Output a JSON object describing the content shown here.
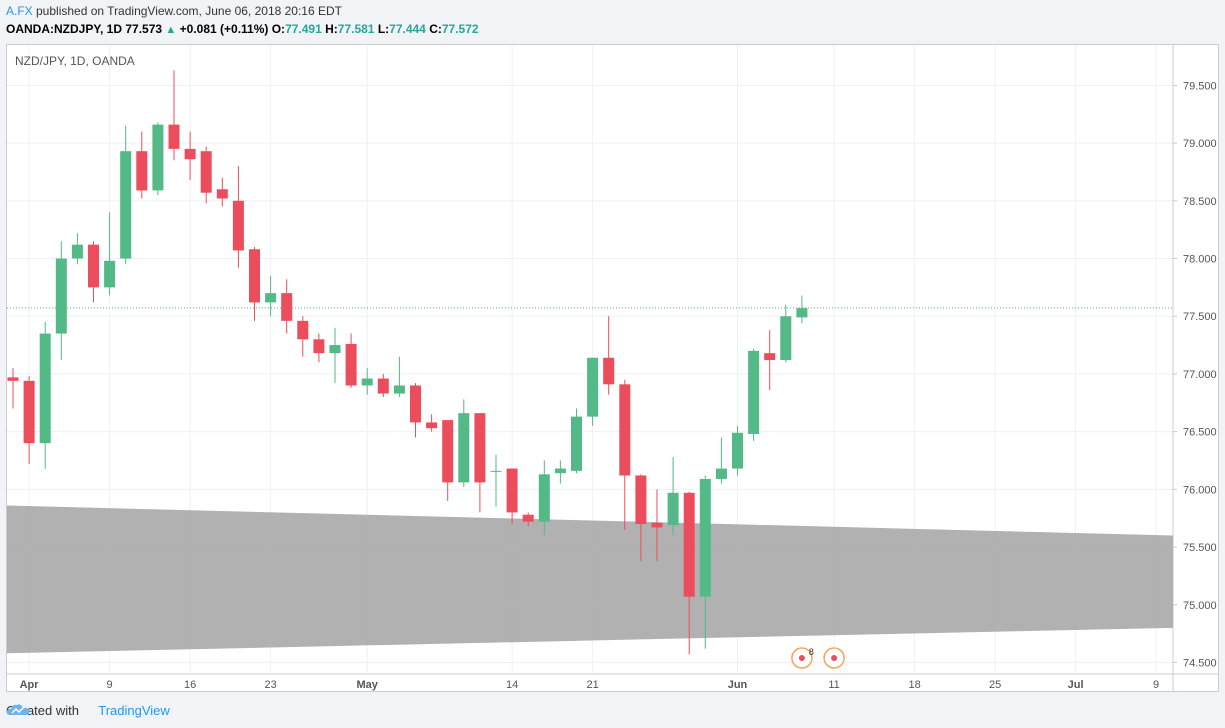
{
  "header": {
    "author": "A.FX",
    "published_text": " published on TradingView.com, June 06, 2018 20:16 EDT",
    "symbol": "OANDA:NZDJPY, 1D",
    "last": "77.573",
    "change": "+0.081 (+0.11%)",
    "o_label": "O:",
    "o_value": "77.491",
    "h_label": "H:",
    "h_value": "77.581",
    "l_label": "L:",
    "l_value": "77.444",
    "c_label": "C:",
    "c_value": "77.572"
  },
  "footer": {
    "created_with": "Created with",
    "brand": "TradingView"
  },
  "colors": {
    "up": "#53b987",
    "down": "#eb4d5c",
    "band": "#a9a9a9",
    "grid": "#eef0f3",
    "price_line": "#53b987"
  },
  "chart_data": {
    "type": "candlestick",
    "title": "NZD/JPY, 1D, OANDA",
    "ylim": [
      74.4,
      79.85
    ],
    "yticks": [
      "74.500",
      "75.000",
      "75.500",
      "76.000",
      "76.500",
      "77.000",
      "77.500",
      "78.000",
      "78.500",
      "79.000",
      "79.500"
    ],
    "current_price": 77.572,
    "xticks": [
      {
        "label": "Apr",
        "i": 1
      },
      {
        "label": "9",
        "i": 6
      },
      {
        "label": "16",
        "i": 11
      },
      {
        "label": "23",
        "i": 16
      },
      {
        "label": "May",
        "i": 22
      },
      {
        "label": "14",
        "i": 31
      },
      {
        "label": "21",
        "i": 36
      },
      {
        "label": "Jun",
        "i": 45
      },
      {
        "label": "11",
        "i": 51
      },
      {
        "label": "18",
        "i": 56
      },
      {
        "label": "25",
        "i": 61
      },
      {
        "label": "Jul",
        "i": 66
      },
      {
        "label": "9",
        "i": 71
      }
    ],
    "candles": [
      {
        "o": 76.97,
        "h": 77.05,
        "l": 76.7,
        "c": 76.94
      },
      {
        "o": 76.94,
        "h": 76.98,
        "l": 76.22,
        "c": 76.4
      },
      {
        "o": 76.4,
        "h": 77.45,
        "l": 76.18,
        "c": 77.35
      },
      {
        "o": 77.35,
        "h": 78.15,
        "l": 77.12,
        "c": 78.0
      },
      {
        "o": 78.0,
        "h": 78.22,
        "l": 77.95,
        "c": 78.12
      },
      {
        "o": 78.12,
        "h": 78.15,
        "l": 77.62,
        "c": 77.75
      },
      {
        "o": 77.75,
        "h": 78.4,
        "l": 77.68,
        "c": 77.98
      },
      {
        "o": 78.0,
        "h": 79.15,
        "l": 77.95,
        "c": 78.93
      },
      {
        "o": 78.93,
        "h": 79.1,
        "l": 78.52,
        "c": 78.59
      },
      {
        "o": 78.59,
        "h": 79.18,
        "l": 78.55,
        "c": 79.16
      },
      {
        "o": 79.16,
        "h": 79.63,
        "l": 78.85,
        "c": 78.95
      },
      {
        "o": 78.95,
        "h": 79.1,
        "l": 78.68,
        "c": 78.86
      },
      {
        "o": 78.93,
        "h": 78.97,
        "l": 78.48,
        "c": 78.57
      },
      {
        "o": 78.6,
        "h": 78.7,
        "l": 78.45,
        "c": 78.52
      },
      {
        "o": 78.5,
        "h": 78.8,
        "l": 77.92,
        "c": 78.07
      },
      {
        "o": 78.08,
        "h": 78.1,
        "l": 77.46,
        "c": 77.62
      },
      {
        "o": 77.62,
        "h": 77.85,
        "l": 77.5,
        "c": 77.7
      },
      {
        "o": 77.7,
        "h": 77.82,
        "l": 77.35,
        "c": 77.46
      },
      {
        "o": 77.46,
        "h": 77.5,
        "l": 77.15,
        "c": 77.3
      },
      {
        "o": 77.3,
        "h": 77.35,
        "l": 77.1,
        "c": 77.18
      },
      {
        "o": 77.18,
        "h": 77.4,
        "l": 76.92,
        "c": 77.25
      },
      {
        "o": 77.26,
        "h": 77.35,
        "l": 76.88,
        "c": 76.9
      },
      {
        "o": 76.9,
        "h": 77.05,
        "l": 76.82,
        "c": 76.96
      },
      {
        "o": 76.96,
        "h": 77.0,
        "l": 76.8,
        "c": 76.83
      },
      {
        "o": 76.83,
        "h": 77.15,
        "l": 76.8,
        "c": 76.9
      },
      {
        "o": 76.9,
        "h": 76.92,
        "l": 76.45,
        "c": 76.58
      },
      {
        "o": 76.58,
        "h": 76.65,
        "l": 76.5,
        "c": 76.53
      },
      {
        "o": 76.6,
        "h": 76.6,
        "l": 75.9,
        "c": 76.06
      },
      {
        "o": 76.06,
        "h": 76.78,
        "l": 76.02,
        "c": 76.66
      },
      {
        "o": 76.66,
        "h": 76.66,
        "l": 75.8,
        "c": 76.06
      },
      {
        "o": 76.16,
        "h": 76.3,
        "l": 75.85,
        "c": 76.16
      },
      {
        "o": 76.18,
        "h": 76.18,
        "l": 75.7,
        "c": 75.8
      },
      {
        "o": 75.78,
        "h": 75.8,
        "l": 75.68,
        "c": 75.72
      },
      {
        "o": 75.72,
        "h": 76.25,
        "l": 75.6,
        "c": 76.13
      },
      {
        "o": 76.14,
        "h": 76.25,
        "l": 76.05,
        "c": 76.18
      },
      {
        "o": 76.16,
        "h": 76.7,
        "l": 76.14,
        "c": 76.63
      },
      {
        "o": 76.63,
        "h": 77.14,
        "l": 76.55,
        "c": 77.14
      },
      {
        "o": 77.14,
        "h": 77.5,
        "l": 76.82,
        "c": 76.91
      },
      {
        "o": 76.91,
        "h": 76.95,
        "l": 75.65,
        "c": 76.12
      },
      {
        "o": 76.12,
        "h": 76.13,
        "l": 75.38,
        "c": 75.7
      },
      {
        "o": 75.71,
        "h": 76.0,
        "l": 75.38,
        "c": 75.67
      },
      {
        "o": 75.69,
        "h": 76.28,
        "l": 75.6,
        "c": 75.97
      },
      {
        "o": 75.97,
        "h": 75.98,
        "l": 74.57,
        "c": 75.07
      },
      {
        "o": 75.07,
        "h": 76.12,
        "l": 74.62,
        "c": 76.09
      },
      {
        "o": 76.09,
        "h": 76.45,
        "l": 76.05,
        "c": 76.18
      },
      {
        "o": 76.18,
        "h": 76.55,
        "l": 76.12,
        "c": 76.49
      },
      {
        "o": 76.48,
        "h": 77.22,
        "l": 76.42,
        "c": 77.2
      },
      {
        "o": 77.18,
        "h": 77.38,
        "l": 76.86,
        "c": 77.12
      },
      {
        "o": 77.12,
        "h": 77.6,
        "l": 77.1,
        "c": 77.5
      },
      {
        "o": 77.49,
        "h": 77.68,
        "l": 77.44,
        "c": 77.57
      }
    ],
    "band": {
      "upper": [
        75.86,
        75.6
      ],
      "lower": [
        74.58,
        74.8
      ]
    },
    "markers": [
      {
        "i": 49,
        "label": "8"
      },
      {
        "i": 51,
        "label": ""
      }
    ]
  }
}
